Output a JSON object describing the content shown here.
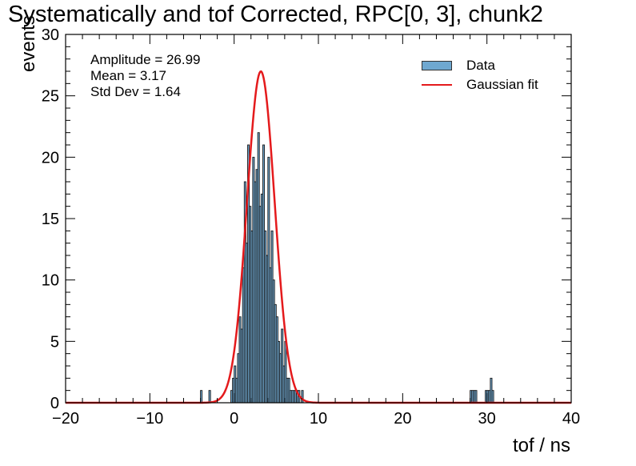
{
  "chart_data": {
    "type": "bar",
    "title": "Systematically and tof Corrected, RPC[0, 3], chunk2",
    "xlabel": "tof / ns",
    "ylabel": "events",
    "xlim": [
      -20,
      40
    ],
    "ylim": [
      0,
      30
    ],
    "x_ticks": [
      "−20",
      "−10",
      "0",
      "10",
      "20",
      "30",
      "40"
    ],
    "y_ticks": [
      "0",
      "5",
      "10",
      "15",
      "20",
      "25",
      "30"
    ],
    "legend": {
      "position": "top-right",
      "entries": [
        "Data",
        "Gaussian fit"
      ]
    },
    "fit_stats": [
      "Amplitude = 26.99",
      "Mean = 3.17",
      "Std Dev = 1.64"
    ],
    "fit": {
      "amplitude": 26.99,
      "mean": 3.17,
      "std": 1.64,
      "color": "#e41a1c"
    },
    "bar_color": "#6fa8d0",
    "bar_width": 0.2,
    "bins_x": [
      -3.9,
      -2.9,
      -0.3,
      -0.1,
      0.1,
      0.3,
      0.5,
      0.7,
      0.9,
      1.1,
      1.3,
      1.5,
      1.7,
      1.9,
      2.1,
      2.3,
      2.5,
      2.7,
      2.9,
      3.1,
      3.3,
      3.5,
      3.7,
      3.9,
      4.1,
      4.3,
      4.5,
      4.7,
      4.9,
      5.1,
      5.3,
      5.5,
      5.7,
      5.9,
      6.1,
      6.3,
      6.5,
      6.7,
      6.9,
      7.1,
      7.3,
      7.5,
      7.7,
      8.1,
      28.1,
      28.3,
      28.5,
      28.7,
      29.9,
      30.1,
      30.3,
      30.5,
      30.7
    ],
    "bins_y": [
      1,
      1,
      1,
      2,
      3,
      2,
      4,
      7,
      6,
      11,
      18,
      13,
      21,
      16,
      14,
      20,
      18,
      19,
      22,
      16,
      17,
      21,
      14,
      12,
      20,
      11,
      14,
      10,
      8,
      7,
      5,
      4,
      6,
      3,
      5,
      2,
      2,
      1,
      1,
      1,
      1,
      1,
      1,
      1,
      1,
      1,
      1,
      1,
      1,
      1,
      1,
      2,
      1
    ]
  }
}
